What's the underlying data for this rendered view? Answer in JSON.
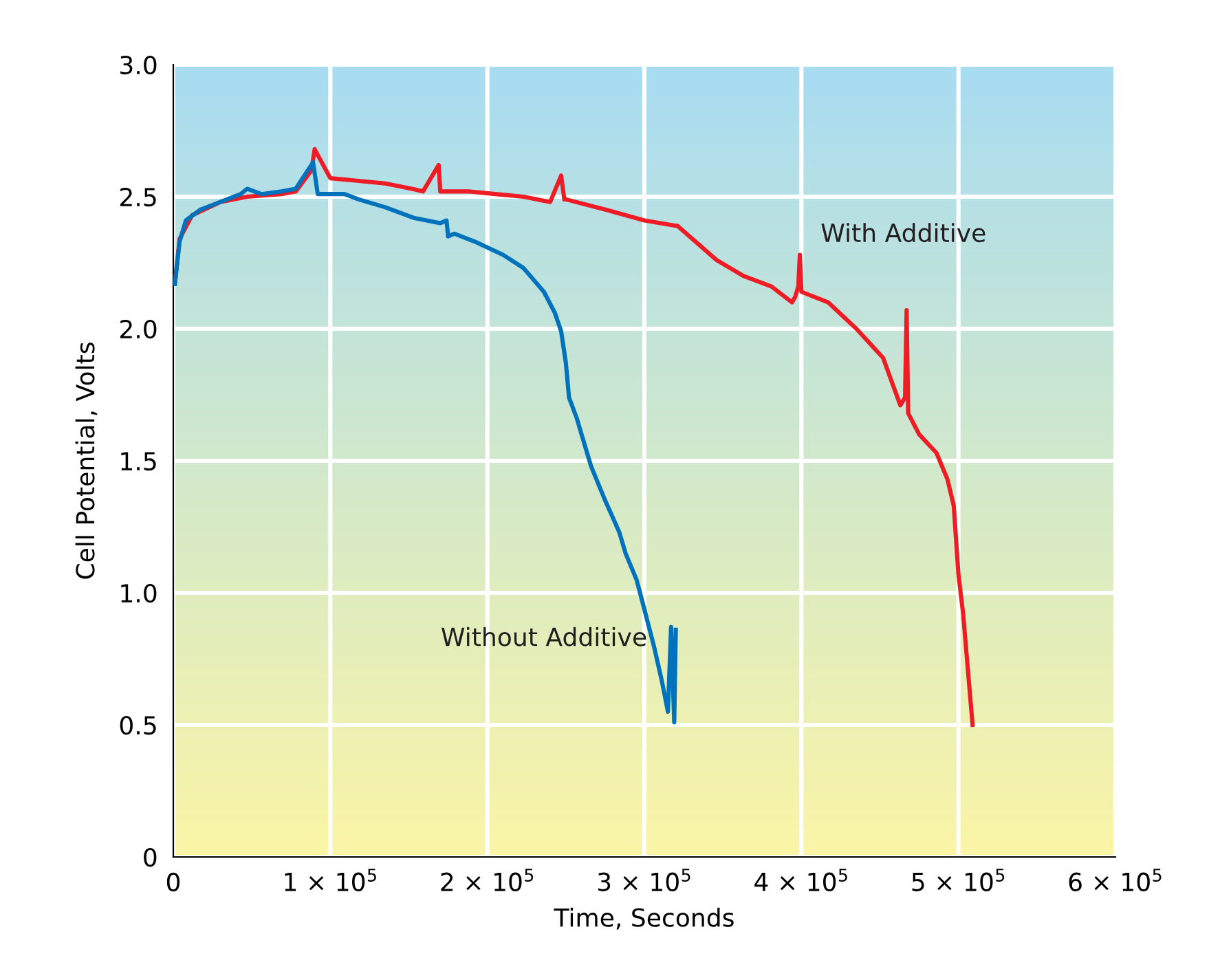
{
  "chart_data": {
    "type": "line",
    "xlabel": "Time, Seconds",
    "ylabel": "Cell Potential, Volts",
    "xlim": [
      0,
      600000
    ],
    "ylim": [
      0,
      3.0
    ],
    "xticks": [
      0,
      {
        "value": 100000,
        "label": "1 × 10$^{5}$"
      },
      {
        "value": 200000,
        "label": "2 × 10$^{5}$"
      },
      {
        "value": 300000,
        "label": "3 × 10$^{5}$"
      },
      {
        "value": 400000,
        "label": "4 × 10$^{5}$"
      },
      {
        "value": 500000,
        "label": "5 × 10$^{5}$"
      },
      {
        "value": 600000,
        "label": "6 × 10$^{5}$"
      }
    ],
    "yticks": [
      {
        "value": 0,
        "label": "0"
      },
      {
        "value": 0.5,
        "label": "0.5"
      },
      {
        "value": 1.0,
        "label": "1.0"
      },
      {
        "value": 1.5,
        "label": "1.5"
      },
      {
        "value": 2.0,
        "label": "2.0"
      },
      {
        "value": 2.5,
        "label": "2.5"
      },
      {
        "value": 3.0,
        "label": "3.0"
      }
    ],
    "grid": true,
    "legend": false,
    "marker": "none",
    "line_style": "solid",
    "series": [
      {
        "name": "With Additive",
        "color": "#ee1c25",
        "x": [
          1000,
          4000,
          12000,
          30000,
          47000,
          69000,
          78000,
          88000,
          90000,
          100000,
          118000,
          135000,
          152000,
          159000,
          169000,
          170000,
          188000,
          205000,
          223000,
          240000,
          247000,
          249000,
          250000,
          276000,
          300000,
          320000,
          321000,
          346000,
          363000,
          381000,
          394000,
          396000,
          398000,
          399000,
          400000,
          417000,
          435000,
          452000,
          463000,
          466000,
          467000,
          468000,
          475000,
          486000,
          493000,
          497000,
          500000,
          503000,
          509000
        ],
        "values": [
          2.17,
          2.34,
          2.43,
          2.48,
          2.5,
          2.51,
          2.52,
          2.6,
          2.68,
          2.57,
          2.56,
          2.55,
          2.53,
          2.52,
          2.62,
          2.52,
          2.52,
          2.51,
          2.5,
          2.48,
          2.58,
          2.49,
          2.49,
          2.45,
          2.41,
          2.39,
          2.39,
          2.26,
          2.2,
          2.16,
          2.1,
          2.12,
          2.16,
          2.28,
          2.14,
          2.1,
          2.0,
          1.89,
          1.71,
          1.74,
          2.07,
          1.68,
          1.6,
          1.53,
          1.43,
          1.33,
          1.07,
          0.92,
          0.5
        ]
      },
      {
        "name": "Without Additive",
        "color": "#0072bc",
        "x": [
          1000,
          4000,
          8000,
          17000,
          30000,
          43000,
          47000,
          56000,
          69000,
          78000,
          89000,
          92000,
          109000,
          118000,
          135000,
          153000,
          170000,
          174000,
          175000,
          179000,
          192000,
          210000,
          223000,
          236000,
          243000,
          247000,
          250000,
          252000,
          257000,
          266000,
          275000,
          284000,
          288000,
          295000,
          299000,
          306000,
          311000,
          315000,
          317000,
          319000,
          320000
        ],
        "values": [
          2.17,
          2.33,
          2.41,
          2.45,
          2.48,
          2.51,
          2.53,
          2.51,
          2.52,
          2.53,
          2.63,
          2.51,
          2.51,
          2.49,
          2.46,
          2.42,
          2.4,
          2.41,
          2.35,
          2.36,
          2.33,
          2.28,
          2.23,
          2.14,
          2.06,
          1.99,
          1.87,
          1.74,
          1.66,
          1.48,
          1.35,
          1.23,
          1.15,
          1.05,
          0.96,
          0.8,
          0.67,
          0.55,
          0.87,
          0.51,
          0.86
        ]
      }
    ]
  }
}
